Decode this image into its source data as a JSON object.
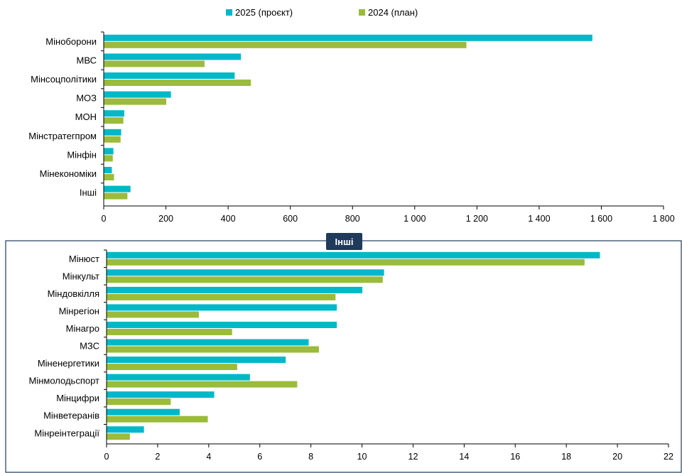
{
  "colors": {
    "series_2025": "#00B8C8",
    "series_2024": "#9BBB3B",
    "frame": "#1F3A5A",
    "badge_bg": "#1F3A5A",
    "axis": "#000000"
  },
  "legend": {
    "placement": "top-center",
    "items": [
      "2025 (проєкт)",
      "2024 (план)"
    ]
  },
  "panel2_badge": "Інші",
  "chart_data": [
    {
      "type": "bar",
      "orientation": "horizontal",
      "title": "",
      "xlabel": "",
      "ylabel": "",
      "categories": [
        "Міноборони",
        "МВС",
        "Мінсоцполітики",
        "МОЗ",
        "МОН",
        "Мінстратегпром",
        "Мінфін",
        "Мінекономіки",
        "Інші"
      ],
      "series": [
        {
          "name": "2025 (проєкт)",
          "values": [
            1570,
            440,
            420,
            215,
            65,
            55,
            30,
            25,
            85
          ]
        },
        {
          "name": "2024 (план)",
          "values": [
            1165,
            323,
            472,
            200,
            62,
            53,
            28,
            32,
            75
          ]
        }
      ],
      "xlim": [
        0,
        1800
      ],
      "xticks": [
        0,
        200,
        400,
        600,
        800,
        1000,
        1200,
        1400,
        1600,
        1800
      ],
      "xtick_labels": [
        "0",
        "200",
        "400",
        "600",
        "800",
        "1 000",
        "1 200",
        "1 400",
        "1 600",
        "1 800"
      ],
      "grid": false
    },
    {
      "type": "bar",
      "orientation": "horizontal",
      "title": "",
      "xlabel": "",
      "ylabel": "",
      "categories": [
        "Мінюст",
        "Мінкульт",
        "Міндовкілля",
        "Мінрегіон",
        "Мінагро",
        "МЗС",
        "Міненергетики",
        "Мінмолодьспорт",
        "Мінцифри",
        "Мінветеранів",
        "Мінреінтеграції"
      ],
      "series": [
        {
          "name": "2025 (проєкт)",
          "values": [
            19.3,
            10.85,
            10.0,
            9.0,
            9.0,
            7.9,
            7.0,
            5.6,
            4.2,
            2.85,
            1.45
          ]
        },
        {
          "name": "2024 (план)",
          "values": [
            18.7,
            10.8,
            8.95,
            3.6,
            4.9,
            8.3,
            5.1,
            7.45,
            2.5,
            3.95,
            0.9
          ]
        }
      ],
      "xlim": [
        0,
        22
      ],
      "xticks": [
        0,
        2,
        4,
        6,
        8,
        10,
        12,
        14,
        16,
        18,
        20,
        22
      ],
      "xtick_labels": [
        "0",
        "2",
        "4",
        "6",
        "8",
        "10",
        "12",
        "14",
        "16",
        "18",
        "20",
        "22"
      ],
      "grid": false
    }
  ]
}
